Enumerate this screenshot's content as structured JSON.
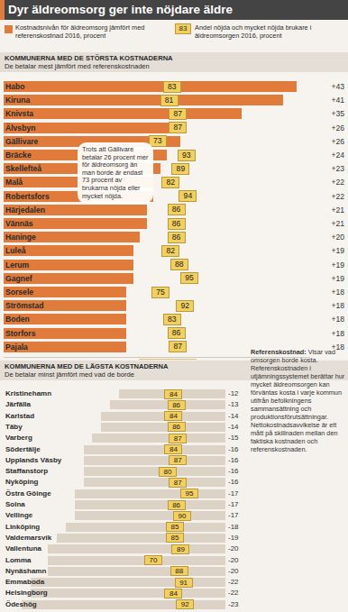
{
  "header": {
    "title": "Dyr äldreomsorg ger inte nöjdare äldre",
    "legend_sample_label": "83"
  },
  "chart_data": [
    {
      "type": "bar",
      "orientation": "horizontal",
      "title": "KOMMUNERNA MED DE STÖRSTA KOSTNADERNA",
      "subtitle": "De betalar mest jämfört med referenskostnaden",
      "categories": [
        "Habo",
        "Kiruna",
        "Knivsta",
        "Älvsbyn",
        "Gällivare",
        "Bräcke",
        "Skellefteå",
        "Malå",
        "Robertsfors",
        "Härjedalen",
        "Vännäs",
        "Haninge",
        "Luleå",
        "Lerum",
        "Gagnef",
        "Sorsele",
        "Strömstad",
        "Boden",
        "Storfors",
        "Pajala"
      ],
      "series": [
        {
          "name": "Kostnadsnivån för äldreomsorg jämfört med referenskostnad 2016, procent",
          "color": "#e07b3c",
          "values": [
            43,
            41,
            35,
            26,
            26,
            24,
            23,
            22,
            22,
            21,
            21,
            20,
            19,
            19,
            19,
            18,
            18,
            18,
            18,
            18
          ],
          "value_labels": [
            "+43",
            "+41",
            "+35",
            "+26",
            "+26",
            "+24",
            "+23",
            "+22",
            "+22",
            "+21",
            "+21",
            "+20",
            "+19",
            "+19",
            "+19",
            "+18",
            "+18",
            "+18",
            "+18",
            "+18"
          ]
        },
        {
          "name": "Andel nöjda och mycket nöjda brukare i äldreomsorgen 2016, procent",
          "color": "#f3cf5e",
          "type": "marker",
          "axis": "y2",
          "values": [
            83,
            81,
            87,
            87,
            73,
            93,
            89,
            82,
            94,
            86,
            86,
            86,
            82,
            88,
            95,
            75,
            92,
            83,
            86,
            87
          ]
        }
      ],
      "xlim": [
        0,
        45
      ],
      "y2lim": [
        60,
        100
      ],
      "data_labels": true,
      "tick_labels": false,
      "annotation": "Trots att Gällivare betalar 26 procent mer för äldreomsorg än man borde är endast 73 procent av brukarna nöjda eller mycket nöjda."
    },
    {
      "type": "bar",
      "orientation": "horizontal",
      "title": "KOMMUNERNA MED DE LÄGSTA KOSTNADERNA",
      "subtitle": "De betalar minst jämfört med vad de borde",
      "categories": [
        "Kristinehamn",
        "Järfälla",
        "Karlstad",
        "Täby",
        "Varberg",
        "Södertälje",
        "Upplands Väsby",
        "Staffanstorp",
        "Nyköping",
        "Östra Göinge",
        "Solna",
        "Vellinge",
        "Linköping",
        "Valdemarsvik",
        "Vallentuna",
        "Lomma",
        "Nynäshamn",
        "Emmaboda",
        "Helsingborg",
        "Ödeshög"
      ],
      "series": [
        {
          "color": "#ddd2c6",
          "values": [
            -12,
            -13,
            -14,
            -14,
            -15,
            -16,
            -16,
            -16,
            -16,
            -17,
            -17,
            -17,
            -18,
            -19,
            -20,
            -20,
            -20,
            -22,
            -22,
            -23
          ],
          "value_labels": [
            "-12",
            "-13",
            "-14",
            "-14",
            "-15",
            "-16",
            "-16",
            "-16",
            "-16",
            "-17",
            "-17",
            "-17",
            "-18",
            "-19",
            "-20",
            "-20",
            "-20",
            "-22",
            "-22",
            "-23"
          ]
        },
        {
          "color": "#f3cf5e",
          "type": "marker",
          "axis": "y2",
          "values": [
            84,
            86,
            84,
            86,
            87,
            84,
            87,
            80,
            87,
            95,
            86,
            90,
            85,
            85,
            89,
            70,
            88,
            91,
            84,
            92
          ]
        }
      ],
      "xlim": [
        -25,
        0
      ],
      "y2lim": [
        60,
        100
      ],
      "data_labels": true,
      "tick_labels": false,
      "annotation": {
        "heading": "Referenskostnad:",
        "text": "Visar vad omsorgen borde kosta. Referenskostnaden i utjämningssystemet berättar hur mycket äldreomsorgen kan förväntas kosta i varje kommun utifrån befolkningens sammansättning och produktionsförutsättningar. Nettokostnadsavvikelse är ett mått på skillnaden mellan den faktiska kostnaden och referenskostnaden."
      }
    }
  ]
}
